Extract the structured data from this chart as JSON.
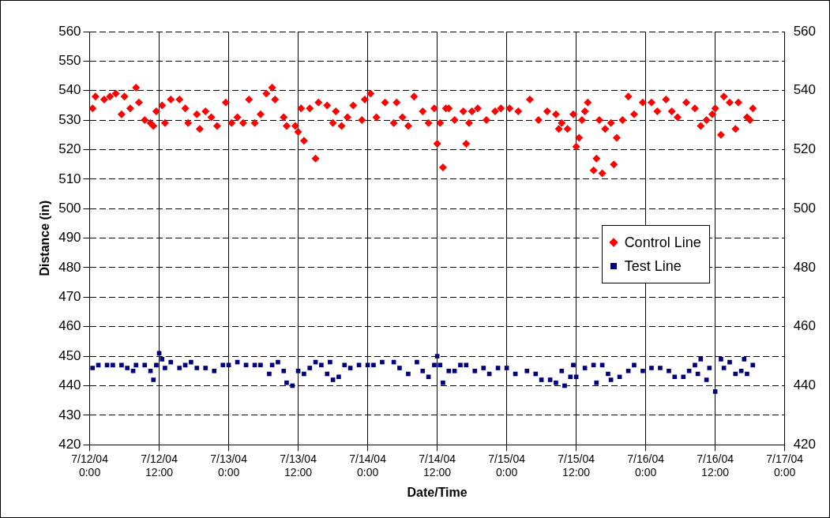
{
  "chart_data": {
    "type": "scatter",
    "xlabel": "Date/Time",
    "ylabel": "Distance (in)",
    "xlim": [
      "--07-12T00:00",
      "--07-17T00:00"
    ],
    "xticks": [
      {
        "value": "--07-12T00:00",
        "label": "7/12/04 0:00"
      },
      {
        "value": "--07-12T12:00",
        "label": "7/12/04 12:00"
      },
      {
        "value": "--07-13T00:00",
        "label": "7/13/04 0:00"
      },
      {
        "value": "--07-13T12:00",
        "label": "7/13/04 12:00"
      },
      {
        "value": "--07-14T00:00",
        "label": "7/14/04 0:00"
      },
      {
        "value": "--07-14T12:00",
        "label": "7/14/04 12:00"
      },
      {
        "value": "--07-15T00:00",
        "label": "7/15/04 0:00"
      },
      {
        "value": "--07-15T12:00",
        "label": "7/15/04 12:00"
      },
      {
        "value": "--07-16T00:00",
        "label": "7/16/04 0:00"
      },
      {
        "value": "--07-16T12:00",
        "label": "7/16/04 12:00"
      },
      {
        "value": "--07-17T00:00",
        "label": "7/17/04 0:00"
      }
    ],
    "ylim": [
      420,
      560
    ],
    "yticks": [
      420,
      430,
      440,
      450,
      460,
      470,
      480,
      490,
      500,
      510,
      520,
      530,
      540,
      550,
      560
    ],
    "y2lim": [
      420,
      560
    ],
    "y2ticks": [
      420,
      440,
      460,
      480,
      500,
      520,
      540,
      560
    ],
    "grid": true,
    "legend": "right",
    "series": [
      {
        "name": "Control Line",
        "color": "#ff0000",
        "marker": "diamond",
        "x": [
          "--07-12T00:30",
          "--07-12T01:00",
          "--07-12T02:30",
          "--07-12T03:30",
          "--07-12T04:30",
          "--07-12T05:30",
          "--07-12T06:00",
          "--07-12T07:00",
          "--07-12T08:00",
          "--07-12T08:30",
          "--07-12T09:30",
          "--07-12T10:30",
          "--07-12T11:00",
          "--07-12T11:30",
          "--07-12T12:30",
          "--07-12T13:00",
          "--07-12T14:00",
          "--07-12T15:30",
          "--07-12T16:30",
          "--07-12T17:00",
          "--07-12T18:30",
          "--07-12T19:00",
          "--07-12T20:00",
          "--07-12T21:00",
          "--07-12T22:00",
          "--07-12T23:30",
          "--07-13T00:30",
          "--07-13T01:30",
          "--07-13T02:30",
          "--07-13T03:30",
          "--07-13T04:30",
          "--07-13T05:30",
          "--07-13T06:30",
          "--07-13T07:30",
          "--07-13T08:00",
          "--07-13T09:30",
          "--07-13T10:00",
          "--07-13T11:30",
          "--07-13T12:00",
          "--07-13T12:30",
          "--07-13T13:00",
          "--07-13T14:00",
          "--07-13T15:00",
          "--07-13T15:30",
          "--07-13T17:00",
          "--07-13T18:00",
          "--07-13T18:30",
          "--07-13T19:30",
          "--07-13T20:30",
          "--07-13T21:30",
          "--07-13T23:00",
          "--07-13T23:30",
          "--07-14T00:30",
          "--07-14T01:30",
          "--07-14T03:00",
          "--07-14T04:30",
          "--07-14T05:00",
          "--07-14T06:00",
          "--07-14T07:00",
          "--07-14T08:00",
          "--07-14T09:30",
          "--07-14T10:30",
          "--07-14T11:30",
          "--07-14T12:00",
          "--07-14T12:30",
          "--07-14T13:00",
          "--07-14T13:30",
          "--07-14T14:00",
          "--07-14T15:00",
          "--07-14T16:30",
          "--07-14T17:00",
          "--07-14T17:30",
          "--07-14T18:00",
          "--07-14T19:00",
          "--07-14T20:30",
          "--07-14T22:00",
          "--07-14T23:00",
          "--07-15T00:30",
          "--07-15T02:00",
          "--07-15T04:00",
          "--07-15T05:30",
          "--07-15T07:00",
          "--07-15T08:30",
          "--07-15T09:00",
          "--07-15T09:30",
          "--07-15T10:30",
          "--07-15T11:30",
          "--07-15T12:00",
          "--07-15T12:30",
          "--07-15T13:00",
          "--07-15T13:30",
          "--07-15T14:00",
          "--07-15T15:00",
          "--07-15T15:30",
          "--07-15T16:00",
          "--07-15T16:30",
          "--07-15T17:00",
          "--07-15T18:00",
          "--07-15T18:30",
          "--07-15T19:00",
          "--07-15T20:00",
          "--07-15T21:00",
          "--07-15T22:00",
          "--07-15T23:30",
          "--07-16T01:00",
          "--07-16T02:00",
          "--07-16T03:30",
          "--07-16T04:30",
          "--07-16T05:30",
          "--07-16T07:00",
          "--07-16T08:30",
          "--07-16T09:30",
          "--07-16T10:30",
          "--07-16T11:30",
          "--07-16T12:00",
          "--07-16T13:00",
          "--07-16T13:30",
          "--07-16T14:30",
          "--07-16T15:30",
          "--07-16T16:00",
          "--07-16T17:30",
          "--07-16T18:00",
          "--07-16T18:30"
        ],
        "values": [
          534,
          538,
          537,
          538,
          539,
          532,
          538,
          534,
          541,
          536,
          530,
          529,
          528,
          533,
          535,
          529,
          537,
          537,
          534,
          529,
          532,
          527,
          533,
          531,
          528,
          536,
          529,
          531,
          529,
          537,
          529,
          532,
          539,
          541,
          537,
          531,
          528,
          528,
          526,
          534,
          523,
          534,
          517,
          536,
          535,
          529,
          533,
          528,
          531,
          535,
          530,
          537,
          539,
          531,
          536,
          529,
          536,
          531,
          528,
          538,
          533,
          529,
          534,
          522,
          529,
          514,
          534,
          534,
          530,
          533,
          522,
          529,
          533,
          534,
          530,
          533,
          534,
          534,
          533,
          537,
          530,
          533,
          532,
          527,
          529,
          527,
          532,
          521,
          524,
          530,
          533,
          536,
          513,
          517,
          530,
          512,
          527,
          529,
          515,
          524,
          530,
          538,
          532,
          536,
          536,
          533,
          537,
          533,
          531,
          536,
          534,
          528,
          530,
          532,
          534,
          525,
          538,
          536,
          527,
          536,
          531,
          530,
          534
        ]
      },
      {
        "name": "Test Line",
        "color": "#000080",
        "marker": "square",
        "x": [
          "--07-12T00:30",
          "--07-12T01:30",
          "--07-12T03:00",
          "--07-12T04:00",
          "--07-12T05:30",
          "--07-12T06:30",
          "--07-12T07:30",
          "--07-12T08:00",
          "--07-12T09:30",
          "--07-12T10:30",
          "--07-12T11:00",
          "--07-12T11:30",
          "--07-12T12:00",
          "--07-12T12:30",
          "--07-12T13:00",
          "--07-12T14:00",
          "--07-12T15:30",
          "--07-12T16:30",
          "--07-12T17:30",
          "--07-12T18:30",
          "--07-12T20:00",
          "--07-12T21:30",
          "--07-12T23:00",
          "--07-13T00:00",
          "--07-13T01:30",
          "--07-13T03:00",
          "--07-13T04:30",
          "--07-13T05:30",
          "--07-13T07:00",
          "--07-13T07:30",
          "--07-13T08:30",
          "--07-13T09:30",
          "--07-13T10:00",
          "--07-13T11:00",
          "--07-13T12:00",
          "--07-13T13:00",
          "--07-13T14:00",
          "--07-13T15:00",
          "--07-13T16:00",
          "--07-13T17:00",
          "--07-13T17:30",
          "--07-13T18:00",
          "--07-13T19:00",
          "--07-13T20:00",
          "--07-13T21:00",
          "--07-13T22:30",
          "--07-14T00:00",
          "--07-14T01:00",
          "--07-14T02:30",
          "--07-14T04:30",
          "--07-14T05:30",
          "--07-14T07:00",
          "--07-14T08:30",
          "--07-14T09:30",
          "--07-14T10:30",
          "--07-14T11:30",
          "--07-14T12:00",
          "--07-14T12:30",
          "--07-14T13:00",
          "--07-14T14:00",
          "--07-14T15:00",
          "--07-14T16:00",
          "--07-14T17:00",
          "--07-14T18:30",
          "--07-14T20:00",
          "--07-14T21:00",
          "--07-14T22:30",
          "--07-15T00:00",
          "--07-15T01:30",
          "--07-15T03:30",
          "--07-15T05:00",
          "--07-15T06:00",
          "--07-15T07:30",
          "--07-15T08:30",
          "--07-15T09:30",
          "--07-15T10:00",
          "--07-15T11:00",
          "--07-15T11:30",
          "--07-15T12:00",
          "--07-15T13:30",
          "--07-15T15:00",
          "--07-15T15:30",
          "--07-15T16:30",
          "--07-15T17:30",
          "--07-15T18:00",
          "--07-15T19:30",
          "--07-15T21:00",
          "--07-15T22:00",
          "--07-15T23:30",
          "--07-16T01:00",
          "--07-16T02:30",
          "--07-16T04:00",
          "--07-16T05:00",
          "--07-16T06:30",
          "--07-16T07:30",
          "--07-16T08:30",
          "--07-16T09:00",
          "--07-16T09:30",
          "--07-16T10:30",
          "--07-16T11:00",
          "--07-16T12:00",
          "--07-16T13:00",
          "--07-16T13:30",
          "--07-16T14:30",
          "--07-16T15:30",
          "--07-16T16:30",
          "--07-16T17:00",
          "--07-16T17:30",
          "--07-16T18:30"
        ],
        "values": [
          446,
          447,
          447,
          447,
          447,
          446,
          445,
          447,
          447,
          445,
          442,
          447,
          451,
          449,
          446,
          448,
          446,
          447,
          448,
          446,
          446,
          445,
          447,
          447,
          448,
          447,
          447,
          447,
          444,
          447,
          448,
          445,
          441,
          440,
          445,
          444,
          446,
          448,
          447,
          444,
          448,
          442,
          443,
          447,
          446,
          447,
          447,
          447,
          448,
          448,
          446,
          444,
          448,
          445,
          443,
          447,
          450,
          447,
          441,
          445,
          445,
          447,
          447,
          445,
          446,
          444,
          446,
          446,
          444,
          445,
          444,
          442,
          442,
          441,
          445,
          440,
          443,
          447,
          443,
          446,
          447,
          441,
          447,
          444,
          442,
          443,
          445,
          447,
          445,
          446,
          446,
          445,
          443,
          443,
          445,
          447,
          444,
          449,
          442,
          446,
          438,
          449,
          446,
          448,
          444,
          445,
          449,
          444,
          447
        ]
      }
    ]
  }
}
